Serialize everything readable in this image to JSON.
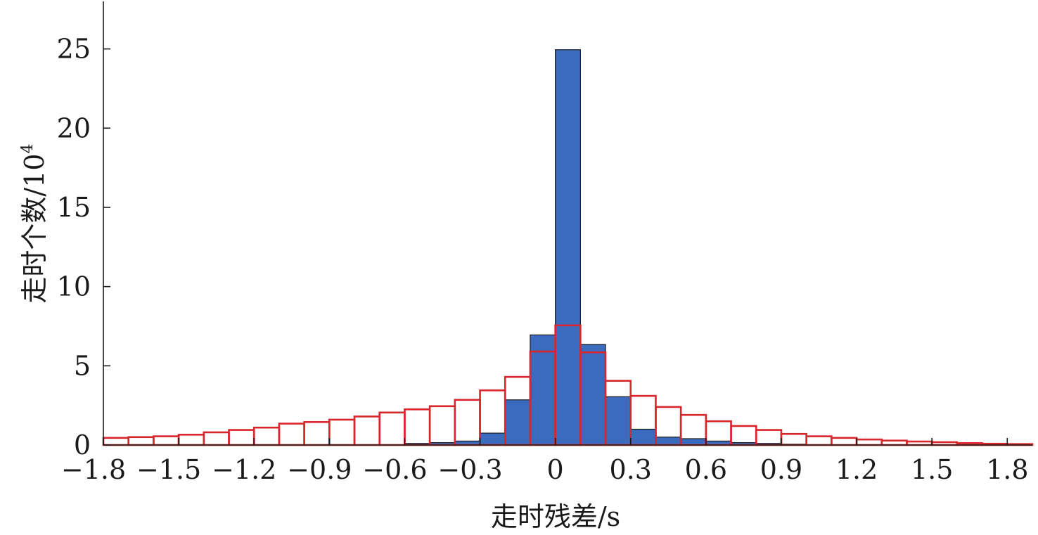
{
  "chart_data": {
    "type": "bar",
    "xlabel": "走时残差/s",
    "ylabel": "走时个数/10",
    "ylabel_superscript": "4",
    "xlim": [
      -1.8,
      1.9
    ],
    "ylim": [
      0,
      28
    ],
    "bin_width": 0.1,
    "xticks": [
      {
        "value": -1.8,
        "label": "−1.8"
      },
      {
        "value": -1.5,
        "label": "−1.5"
      },
      {
        "value": -1.2,
        "label": "−1.2"
      },
      {
        "value": -0.9,
        "label": "−0.9"
      },
      {
        "value": -0.6,
        "label": "−0.6"
      },
      {
        "value": -0.3,
        "label": "−0.3"
      },
      {
        "value": 0,
        "label": "0"
      },
      {
        "value": 0.3,
        "label": "0.3"
      },
      {
        "value": 0.6,
        "label": "0.6"
      },
      {
        "value": 0.9,
        "label": "0.9"
      },
      {
        "value": 1.2,
        "label": "1.2"
      },
      {
        "value": 1.5,
        "label": "1.5"
      },
      {
        "value": 1.8,
        "label": "1.8"
      }
    ],
    "yticks": [
      {
        "value": 0,
        "label": "0"
      },
      {
        "value": 5,
        "label": "5"
      },
      {
        "value": 10,
        "label": "10"
      },
      {
        "value": 15,
        "label": "15"
      },
      {
        "value": 20,
        "label": "20"
      },
      {
        "value": 25,
        "label": "25"
      }
    ],
    "bin_left_edges": [
      -1.8,
      -1.7,
      -1.6,
      -1.5,
      -1.4,
      -1.3,
      -1.2,
      -1.1,
      -1.0,
      -0.9,
      -0.8,
      -0.7,
      -0.6,
      -0.5,
      -0.4,
      -0.3,
      -0.2,
      -0.1,
      0.0,
      0.1,
      0.2,
      0.3,
      0.4,
      0.5,
      0.6,
      0.7,
      0.8,
      0.9,
      1.0,
      1.1,
      1.2,
      1.3,
      1.4,
      1.5,
      1.6,
      1.7,
      1.8
    ],
    "series": [
      {
        "style": "filled",
        "color": "#3a6bbf",
        "values": [
          0,
          0,
          0,
          0,
          0,
          0,
          0,
          0,
          0,
          0,
          0,
          0,
          0.1,
          0.15,
          0.25,
          0.75,
          2.85,
          6.95,
          24.95,
          6.35,
          3.05,
          1.0,
          0.5,
          0.4,
          0.25,
          0.15,
          0.1,
          0.05,
          0,
          0,
          0,
          0,
          0,
          0,
          0,
          0,
          0
        ]
      },
      {
        "style": "outline",
        "color": "#d9262c",
        "values": [
          0.45,
          0.5,
          0.55,
          0.65,
          0.8,
          0.95,
          1.1,
          1.35,
          1.45,
          1.6,
          1.8,
          2.05,
          2.25,
          2.45,
          2.85,
          3.45,
          4.3,
          5.9,
          7.55,
          5.85,
          4.05,
          3.1,
          2.4,
          1.9,
          1.5,
          1.2,
          0.95,
          0.7,
          0.55,
          0.45,
          0.35,
          0.28,
          0.22,
          0.18,
          0.12,
          0.08,
          0.06
        ]
      }
    ]
  }
}
